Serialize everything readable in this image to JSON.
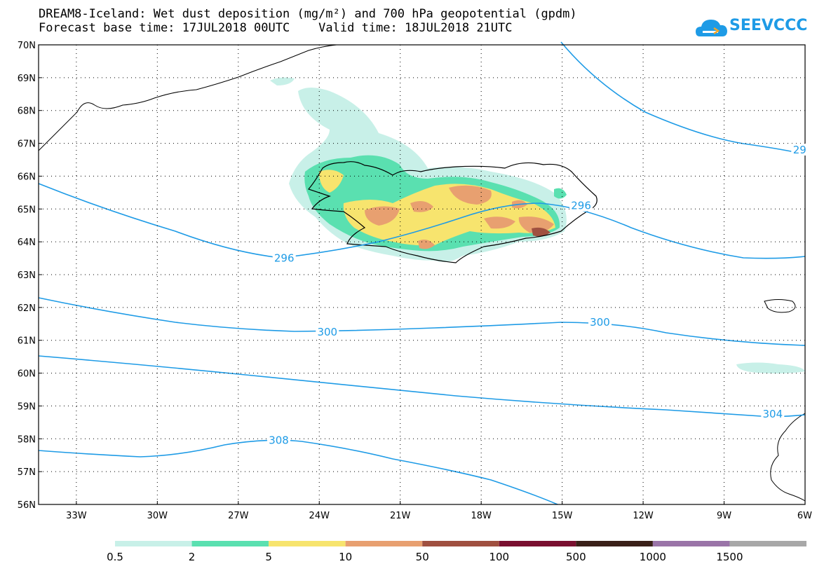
{
  "header": {
    "title_line1": "DREAM8-Iceland: Wet dust deposition (mg/m²) and 700 hPa geopotential (gpdm)",
    "title_line2": "Forecast base time: 17JUL2018 00UTC    Valid time: 18JUL2018 21UTC"
  },
  "logo": {
    "text": "SEEVCCC",
    "icon": "cloud-icon",
    "color": "#1e9be6"
  },
  "axes": {
    "lat_labels": [
      "70N",
      "69N",
      "68N",
      "67N",
      "66N",
      "65N",
      "64N",
      "63N",
      "62N",
      "61N",
      "60N",
      "59N",
      "58N",
      "57N",
      "56N"
    ],
    "lat_values": [
      70,
      69,
      68,
      67,
      66,
      65,
      64,
      63,
      62,
      61,
      60,
      59,
      58,
      57,
      56
    ],
    "lon_labels": [
      "33W",
      "30W",
      "27W",
      "24W",
      "21W",
      "18W",
      "15W",
      "12W",
      "9W",
      "6W"
    ],
    "lon_values": [
      -33,
      -30,
      -27,
      -24,
      -21,
      -18,
      -15,
      -12,
      -9,
      -6
    ],
    "lat_range": [
      56,
      70
    ],
    "lon_range": [
      -34.4,
      -6
    ],
    "grid": "dotted"
  },
  "contours": {
    "color": "#1e9be6",
    "labels": [
      {
        "text": "296",
        "lon": -25.3,
        "lat": 63.5
      },
      {
        "text": "296",
        "lon": -14.3,
        "lat": 65.1
      },
      {
        "text": "300",
        "lon": -23.7,
        "lat": 61.25
      },
      {
        "text": "300",
        "lon": -13.6,
        "lat": 61.55
      },
      {
        "text": "304",
        "lon": -7.2,
        "lat": 58.75
      },
      {
        "text": "308",
        "lon": -25.5,
        "lat": 57.95
      },
      {
        "text": "29",
        "lon": -6.2,
        "lat": 66.8
      }
    ]
  },
  "legend": {
    "labels": [
      "0.5",
      "2",
      "5",
      "10",
      "50",
      "100",
      "500",
      "1000",
      "1500"
    ],
    "colors": [
      "#c8f0e8",
      "#5ae0b0",
      "#f7e46e",
      "#e8a070",
      "#a05040",
      "#7a1030",
      "#3a2018",
      "#9a74a8",
      "#a8a8a8"
    ]
  }
}
